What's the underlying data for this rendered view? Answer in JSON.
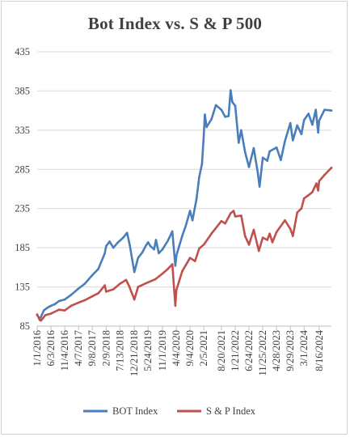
{
  "chart_data": {
    "type": "line",
    "title": "Bot Index vs. S & P 500",
    "xlabel": "",
    "ylabel": "",
    "ylim": [
      85,
      435
    ],
    "y_ticks": [
      85,
      135,
      185,
      235,
      285,
      335,
      385,
      435
    ],
    "x_range": [
      "2016-01-01",
      "2024-12-31"
    ],
    "x_tick_labels": [
      "1/1/2016",
      "6/3/2016",
      "11/4/2016",
      "4/7/2017",
      "9/8/2017",
      "2/9/2018",
      "7/13/2018",
      "12/21/2018",
      "5/24/2019",
      "11/1/2019",
      "4/4/2020",
      "9/4/2020",
      "2/5/2021",
      "8/20/2021",
      "1/21/2022",
      "6/24/2022",
      "11/25/2022",
      "4/28/2023",
      "9/29/2023",
      "3/1/2024",
      "8/16/2024"
    ],
    "x_tick_dates": [
      "2016-01-01",
      "2016-06-03",
      "2016-11-04",
      "2017-04-07",
      "2017-09-08",
      "2018-02-09",
      "2018-07-13",
      "2018-12-21",
      "2019-05-24",
      "2019-11-01",
      "2020-04-04",
      "2020-09-04",
      "2021-02-05",
      "2021-08-20",
      "2022-01-21",
      "2022-06-24",
      "2022-11-25",
      "2023-04-28",
      "2023-09-29",
      "2024-03-01",
      "2024-08-16"
    ],
    "grid": true,
    "legend_position": "bottom",
    "series": [
      {
        "name": "BOT Index",
        "color": "#4a7ebb",
        "x": [
          "2016-01-01",
          "2016-01-29",
          "2016-02-12",
          "2016-03-15",
          "2016-05-01",
          "2016-06-03",
          "2016-07-15",
          "2016-09-01",
          "2016-11-04",
          "2017-01-15",
          "2017-04-07",
          "2017-06-15",
          "2017-09-08",
          "2017-11-15",
          "2018-01-26",
          "2018-02-09",
          "2018-03-20",
          "2018-05-01",
          "2018-06-15",
          "2018-07-13",
          "2018-08-20",
          "2018-10-01",
          "2018-11-01",
          "2018-12-21",
          "2019-02-01",
          "2019-03-20",
          "2019-05-01",
          "2019-05-24",
          "2019-06-20",
          "2019-07-30",
          "2019-08-20",
          "2019-09-20",
          "2019-11-01",
          "2019-12-31",
          "2020-02-19",
          "2020-03-23",
          "2020-04-04",
          "2020-06-08",
          "2020-07-15",
          "2020-09-04",
          "2020-10-01",
          "2020-11-15",
          "2020-12-15",
          "2021-01-15",
          "2021-02-05",
          "2021-02-16",
          "2021-03-08",
          "2021-05-01",
          "2021-06-20",
          "2021-08-20",
          "2021-10-01",
          "2021-11-08",
          "2021-12-01",
          "2021-12-20",
          "2022-01-21",
          "2022-03-01",
          "2022-03-29",
          "2022-05-12",
          "2022-06-24",
          "2022-08-16",
          "2022-09-30",
          "2022-10-20",
          "2022-11-25",
          "2023-01-15",
          "2023-02-10",
          "2023-04-28",
          "2023-06-15",
          "2023-07-31",
          "2023-09-29",
          "2023-10-27",
          "2023-12-15",
          "2024-01-31",
          "2024-03-01",
          "2024-04-19",
          "2024-06-01",
          "2024-07-10",
          "2024-08-05",
          "2024-08-16",
          "2024-10-15",
          "2024-12-31"
        ],
        "values": [
          99,
          94,
          97,
          105,
          109,
          111,
          113,
          117,
          119,
          125,
          133,
          139,
          150,
          158,
          178,
          187,
          193,
          185,
          191,
          194,
          198,
          204,
          188,
          154,
          172,
          179,
          188,
          192,
          187,
          183,
          195,
          178,
          183,
          194,
          206,
          162,
          175,
          200,
          212,
          232,
          220,
          247,
          275,
          292,
          330,
          355,
          339,
          349,
          367,
          361,
          352,
          353,
          386,
          371,
          366,
          319,
          335,
          307,
          288,
          312,
          281,
          263,
          300,
          296,
          308,
          313,
          297,
          321,
          344,
          322,
          341,
          330,
          348,
          356,
          342,
          361,
          332,
          347,
          361,
          360
        ]
      },
      {
        "name": "S & P Index",
        "color": "#c0504d",
        "x": [
          "2016-01-01",
          "2016-01-29",
          "2016-02-12",
          "2016-04-01",
          "2016-06-03",
          "2016-09-01",
          "2016-11-04",
          "2017-01-15",
          "2017-04-07",
          "2017-06-15",
          "2017-09-08",
          "2017-11-15",
          "2018-01-26",
          "2018-02-09",
          "2018-05-01",
          "2018-07-13",
          "2018-09-20",
          "2018-10-25",
          "2018-12-21",
          "2019-02-01",
          "2019-05-24",
          "2019-08-15",
          "2019-11-01",
          "2019-12-31",
          "2020-02-19",
          "2020-03-23",
          "2020-04-04",
          "2020-06-08",
          "2020-09-04",
          "2020-10-30",
          "2020-12-15",
          "2021-02-05",
          "2021-05-01",
          "2021-08-20",
          "2021-10-01",
          "2021-12-01",
          "2022-01-03",
          "2022-01-21",
          "2022-03-29",
          "2022-05-12",
          "2022-06-24",
          "2022-08-16",
          "2022-10-12",
          "2022-11-25",
          "2023-01-15",
          "2023-02-10",
          "2023-03-13",
          "2023-04-28",
          "2023-07-31",
          "2023-09-29",
          "2023-10-27",
          "2023-12-15",
          "2024-01-31",
          "2024-03-01",
          "2024-04-19",
          "2024-06-01",
          "2024-07-16",
          "2024-08-05",
          "2024-08-16",
          "2024-10-15",
          "2024-12-31"
        ],
        "values": [
          100,
          93,
          92,
          99,
          101,
          106,
          105,
          111,
          115,
          118,
          123,
          127,
          137,
          129,
          132,
          139,
          144,
          136,
          119,
          135,
          141,
          145,
          152,
          158,
          164,
          111,
          131,
          155,
          172,
          168,
          184,
          189,
          203,
          219,
          216,
          229,
          232,
          225,
          226,
          200,
          189,
          208,
          181,
          198,
          195,
          203,
          192,
          205,
          220,
          209,
          200,
          230,
          235,
          248,
          252,
          256,
          267,
          258,
          270,
          278,
          287
        ]
      }
    ]
  }
}
